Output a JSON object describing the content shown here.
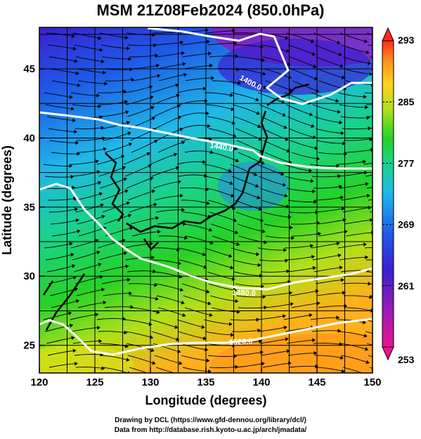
{
  "title": "MSM 21Z08Feb2024 (850.0hPa)",
  "x_axis": {
    "label": "Longitude (degrees)",
    "range": [
      120,
      150
    ],
    "ticks": [
      "120",
      "125",
      "130",
      "135",
      "140",
      "145",
      "150"
    ]
  },
  "y_axis": {
    "label": "Latitude  (degrees)",
    "range": [
      23,
      48
    ],
    "ticks": [
      "25",
      "30",
      "35",
      "40",
      "45"
    ]
  },
  "colorbar": {
    "range": [
      253,
      293
    ],
    "ticks": [
      "253",
      "261",
      "269",
      "277",
      "285",
      "293"
    ],
    "colors": [
      "#e8148c",
      "#9b1bb5",
      "#3a1fd0",
      "#1e5be8",
      "#1fb8e8",
      "#19d28a",
      "#26d226",
      "#b0e01a",
      "#ffd21a",
      "#ff8a1a",
      "#ff2a1a"
    ]
  },
  "contours": [
    {
      "label": "1400.0"
    },
    {
      "label": "1440.0"
    },
    {
      "label": "1480.0"
    },
    {
      "label": "1520.0"
    }
  ],
  "credits": {
    "line1": "Drawing by DCL (https://www.gfd-dennou.org/library/dcl/)",
    "line2": "Data from http://database.rish.kyoto-u.ac.jp/arch/jmadata/"
  }
}
